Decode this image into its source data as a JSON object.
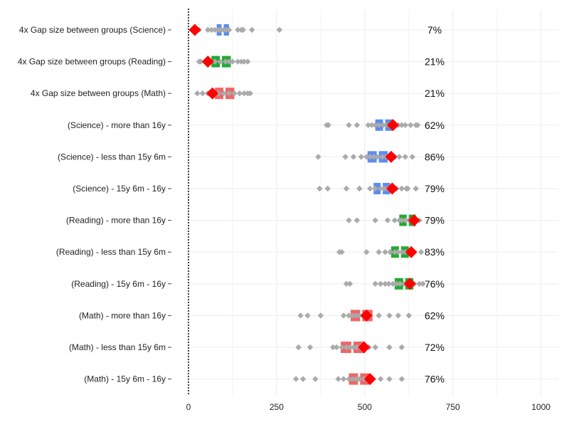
{
  "chart_data": {
    "type": "scatter",
    "title": "",
    "xlabel": "",
    "ylabel": "",
    "xlim": [
      0,
      1000
    ],
    "xticks": [
      "0",
      "250",
      "500",
      "750",
      "1000"
    ],
    "grid": true,
    "colors": {
      "Math": "#ee6666",
      "Reading": "#22aa33",
      "Science": "#5b8def",
      "points": "#aaaaaa",
      "highlight": "#ff0000"
    },
    "rows": [
      {
        "label": "4x Gap size between groups (Science)",
        "subject": "Science",
        "box": [
          80,
          115
        ],
        "median": 97,
        "points": [
          27,
          30,
          55,
          65,
          75,
          85,
          92,
          100,
          108,
          115,
          140,
          150,
          155,
          180,
          258
        ],
        "highlight": 18,
        "pct": "7%"
      },
      {
        "label": "4x Gap size between groups (Reading)",
        "subject": "Reading",
        "box": [
          65,
          120
        ],
        "median": 92,
        "points": [
          30,
          35,
          50,
          65,
          75,
          90,
          105,
          115,
          125,
          140,
          150,
          158,
          168
        ],
        "highlight": 55,
        "pct": "21%"
      },
      {
        "label": "4x Gap size between groups (Math)",
        "subject": "Math",
        "box": [
          75,
          130
        ],
        "median": 102,
        "points": [
          25,
          40,
          55,
          70,
          85,
          100,
          115,
          130,
          145,
          158,
          168,
          175
        ],
        "highlight": 68,
        "pct": "21%"
      },
      {
        "label": "(Science) - more than 16y",
        "subject": "Science",
        "box": [
          530,
          578
        ],
        "median": 555,
        "points": [
          392,
          397,
          455,
          478,
          510,
          520,
          530,
          540,
          552,
          560,
          570,
          585,
          595,
          605,
          615,
          630,
          645,
          650
        ],
        "highlight": 580,
        "pct": "62%"
      },
      {
        "label": "(Science) - less than 15y 6m",
        "subject": "Science",
        "box": [
          508,
          565
        ],
        "median": 537,
        "points": [
          368,
          445,
          468,
          490,
          505,
          515,
          525,
          535,
          550,
          560,
          575,
          585,
          598,
          615,
          635
        ],
        "highlight": 575,
        "pct": "86%"
      },
      {
        "label": "(Science) - 15y 6m - 16y",
        "subject": "Science",
        "box": [
          525,
          572
        ],
        "median": 548,
        "points": [
          372,
          395,
          448,
          485,
          515,
          530,
          545,
          555,
          565,
          580,
          590,
          605,
          618,
          622,
          645
        ],
        "highlight": 578,
        "pct": "79%"
      },
      {
        "label": "(Reading) - more than 16y",
        "subject": "Reading",
        "box": [
          598,
          645
        ],
        "median": 622,
        "points": [
          455,
          478,
          530,
          565,
          585,
          598,
          605,
          615,
          625,
          635,
          645,
          655
        ],
        "highlight": 640,
        "pct": "79%"
      },
      {
        "label": "(Reading) - less than 15y 6m",
        "subject": "Reading",
        "box": [
          575,
          625
        ],
        "median": 600,
        "points": [
          428,
          435,
          505,
          540,
          558,
          572,
          585,
          595,
          605,
          615,
          628,
          640,
          660
        ],
        "highlight": 632,
        "pct": "83%"
      },
      {
        "label": "(Reading) - 15y 6m - 16y",
        "subject": "Reading",
        "box": [
          585,
          638
        ],
        "median": 612,
        "points": [
          448,
          458,
          530,
          545,
          558,
          568,
          580,
          590,
          600,
          612,
          625,
          640,
          655,
          665
        ],
        "highlight": 628,
        "pct": "76%"
      },
      {
        "label": "(Math) - more than 16y",
        "subject": "Math",
        "box": [
          460,
          522
        ],
        "median": 490,
        "points": [
          318,
          338,
          375,
          440,
          455,
          465,
          475,
          485,
          495,
          505,
          515,
          540,
          570,
          595,
          625
        ],
        "highlight": 505,
        "pct": "62%"
      },
      {
        "label": "(Math) - less than 15y 6m",
        "subject": "Math",
        "box": [
          432,
          500
        ],
        "median": 465,
        "points": [
          312,
          345,
          410,
          420,
          435,
          448,
          458,
          468,
          478,
          488,
          500,
          512,
          530,
          570,
          605
        ],
        "highlight": 498,
        "pct": "72%"
      },
      {
        "label": "(Math) - 15y 6m - 16y",
        "subject": "Math",
        "box": [
          455,
          512
        ],
        "median": 484,
        "points": [
          305,
          325,
          360,
          425,
          440,
          455,
          465,
          475,
          485,
          498,
          510,
          545,
          570,
          605
        ],
        "highlight": 515,
        "pct": "76%"
      }
    ]
  }
}
